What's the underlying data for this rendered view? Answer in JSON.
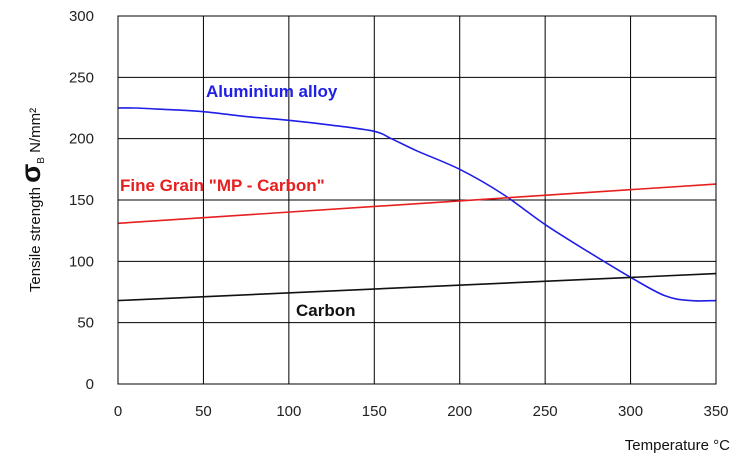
{
  "chart_data": {
    "type": "line",
    "title": "",
    "xlabel": "Temperature °C",
    "ylabel": {
      "prefix": "Tensile strength ",
      "symbol": "σ",
      "subscript": "B",
      "unit": " N/mm²"
    },
    "xlim": [
      0,
      350
    ],
    "ylim": [
      0,
      300
    ],
    "xticks": [
      0,
      50,
      100,
      150,
      200,
      250,
      300,
      350
    ],
    "yticks": [
      0,
      50,
      100,
      150,
      200,
      250,
      300
    ],
    "grid": true,
    "legend": "inline labels",
    "series": [
      {
        "name": "Aluminium alloy",
        "color": "#1f1fe6",
        "x": [
          0,
          10,
          25,
          50,
          75,
          100,
          125,
          150,
          160,
          175,
          200,
          225,
          250,
          275,
          300,
          320,
          335,
          350
        ],
        "y": [
          225,
          225,
          224,
          222,
          218,
          215,
          211,
          206,
          200,
          190,
          175,
          155,
          130,
          108,
          87,
          72,
          68,
          68
        ]
      },
      {
        "name": "Fine Grain \"MP - Carbon\"",
        "color": "#e61f1f",
        "x": [
          0,
          350
        ],
        "y": [
          131,
          163
        ]
      },
      {
        "name": "Carbon",
        "color": "#111111",
        "x": [
          0,
          350
        ],
        "y": [
          68,
          90
        ]
      }
    ]
  }
}
